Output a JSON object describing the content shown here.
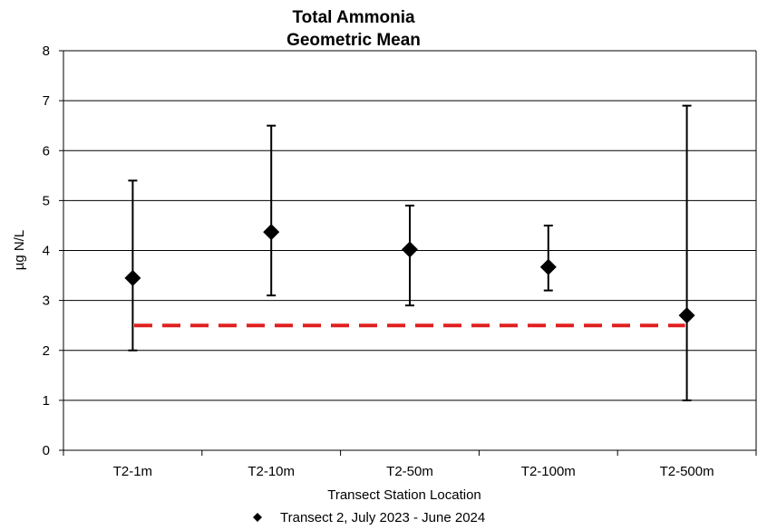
{
  "chart_data": {
    "type": "scatter",
    "title_lines": [
      "Total Ammonia",
      "Geometric Mean"
    ],
    "xlabel": "Transect Station Location",
    "ylabel": "µg N/L",
    "ylim": [
      0,
      8
    ],
    "yticks": [
      0,
      1,
      2,
      3,
      4,
      5,
      6,
      7,
      8
    ],
    "categories": [
      "T2-1m",
      "T2-10m",
      "T2-50m",
      "T2-100m",
      "T2-500m"
    ],
    "series": [
      {
        "name": "Transect 2,  July 2023 - June 2024",
        "marker": "diamond",
        "color": "#000000",
        "values": [
          3.45,
          4.37,
          4.02,
          3.67,
          2.7
        ],
        "error_low": [
          2.0,
          3.1,
          2.9,
          3.2,
          1.0
        ],
        "error_high": [
          5.4,
          6.5,
          4.9,
          4.5,
          6.9
        ]
      }
    ],
    "reference_line": {
      "value": 2.5,
      "color": "#e02020",
      "style": "dashed"
    },
    "grid": {
      "horizontal": true,
      "vertical": false
    },
    "legend_position": "bottom"
  }
}
